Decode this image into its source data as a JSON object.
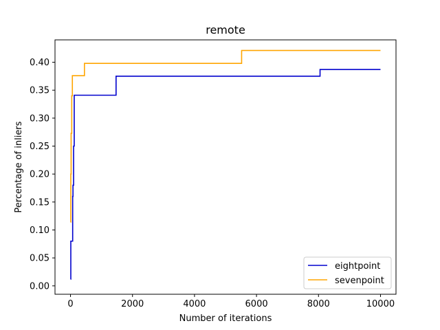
{
  "chart_data": {
    "type": "line",
    "title": "remote",
    "xlabel": "Number of iterations",
    "ylabel": "Percentage of inliers",
    "xlim": [
      -500,
      10500
    ],
    "ylim": [
      -0.015,
      0.44
    ],
    "xticks": [
      0,
      2000,
      4000,
      6000,
      8000,
      10000
    ],
    "xtick_labels": [
      "0",
      "2000",
      "4000",
      "6000",
      "8000",
      "10000"
    ],
    "yticks": [
      0.0,
      0.05,
      0.1,
      0.15,
      0.2,
      0.25,
      0.3,
      0.35,
      0.4
    ],
    "ytick_labels": [
      "0.00",
      "0.05",
      "0.10",
      "0.15",
      "0.20",
      "0.25",
      "0.30",
      "0.35",
      "0.40"
    ],
    "grid": false,
    "legend_position": "bottom-right",
    "step": true,
    "series": [
      {
        "name": "eightpoint",
        "color": "#0000cd",
        "x": [
          1,
          10,
          70,
          80,
          100,
          120,
          1470,
          8050,
          10000
        ],
        "y": [
          0.012,
          0.08,
          0.16,
          0.18,
          0.25,
          0.341,
          0.375,
          0.387,
          0.387
        ]
      },
      {
        "name": "sevenpoint",
        "color": "#ffa500",
        "x": [
          1,
          10,
          20,
          40,
          60,
          450,
          5520,
          10000
        ],
        "y": [
          0.114,
          0.2,
          0.273,
          0.34,
          0.376,
          0.398,
          0.421,
          0.421
        ]
      }
    ]
  }
}
